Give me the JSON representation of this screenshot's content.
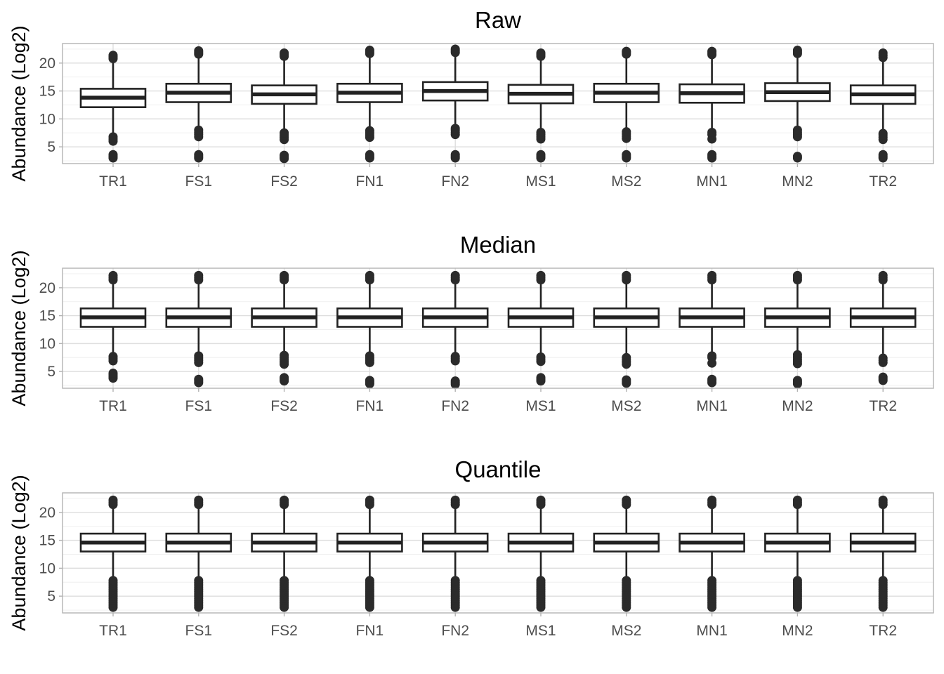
{
  "chart_data": [
    {
      "type": "boxplot",
      "title": "Raw",
      "ylabel": "Abundance (Log2)",
      "ylim": [
        2,
        23.5
      ],
      "yticks": [
        5,
        10,
        15,
        20
      ],
      "categories": [
        "TR1",
        "FS1",
        "FS2",
        "FN1",
        "FN2",
        "MS1",
        "MS2",
        "MN1",
        "MN2",
        "TR2"
      ],
      "boxes": [
        {
          "q1": 12.1,
          "median": 13.8,
          "q3": 15.4,
          "whisker_low": 7.2,
          "whisker_high": 20.4,
          "outliers": [
            6.0,
            6.4,
            6.8,
            3.0,
            3.3,
            3.6,
            20.8,
            21.1,
            21.4
          ]
        },
        {
          "q1": 13.0,
          "median": 14.7,
          "q3": 16.3,
          "whisker_low": 8.4,
          "whisker_high": 21.2,
          "outliers": [
            6.8,
            7.2,
            7.6,
            8.0,
            3.0,
            3.3,
            3.6,
            21.6,
            21.9,
            22.2
          ]
        },
        {
          "q1": 12.7,
          "median": 14.4,
          "q3": 16.0,
          "whisker_low": 7.8,
          "whisker_high": 20.8,
          "outliers": [
            6.3,
            6.7,
            7.1,
            7.5,
            2.9,
            3.2,
            3.5,
            21.2,
            21.5,
            21.8
          ]
        },
        {
          "q1": 13.0,
          "median": 14.7,
          "q3": 16.3,
          "whisker_low": 8.3,
          "whisker_high": 21.3,
          "outliers": [
            6.7,
            7.1,
            7.5,
            7.9,
            3.0,
            3.3,
            3.6,
            21.7,
            22.0,
            22.3
          ]
        },
        {
          "q1": 13.3,
          "median": 15.0,
          "q3": 16.6,
          "whisker_low": 8.6,
          "whisker_high": 21.5,
          "outliers": [
            7.2,
            7.6,
            8.0,
            8.3,
            3.0,
            3.3,
            3.6,
            21.9,
            22.2,
            22.5
          ]
        },
        {
          "q1": 12.8,
          "median": 14.5,
          "q3": 16.1,
          "whisker_low": 7.9,
          "whisker_high": 20.8,
          "outliers": [
            6.4,
            6.8,
            7.2,
            7.6,
            3.0,
            3.3,
            3.6,
            21.2,
            21.5,
            21.8
          ]
        },
        {
          "q1": 13.0,
          "median": 14.7,
          "q3": 16.3,
          "whisker_low": 8.2,
          "whisker_high": 21.2,
          "outliers": [
            6.5,
            6.9,
            7.3,
            7.7,
            3.0,
            3.3,
            3.6,
            21.6,
            21.9,
            22.1
          ]
        },
        {
          "q1": 12.9,
          "median": 14.6,
          "q3": 16.2,
          "whisker_low": 8.0,
          "whisker_high": 21.1,
          "outliers": [
            6.4,
            7.2,
            7.6,
            3.0,
            3.3,
            3.6,
            21.5,
            21.8,
            22.1
          ]
        },
        {
          "q1": 13.2,
          "median": 14.8,
          "q3": 16.4,
          "whisker_low": 8.5,
          "whisker_high": 21.3,
          "outliers": [
            6.8,
            7.2,
            7.6,
            8.0,
            3.0,
            3.3,
            21.7,
            22.0,
            22.3
          ]
        },
        {
          "q1": 12.7,
          "median": 14.4,
          "q3": 16.0,
          "whisker_low": 7.8,
          "whisker_high": 20.6,
          "outliers": [
            6.3,
            6.7,
            7.1,
            7.4,
            3.0,
            3.3,
            3.6,
            21.0,
            21.4,
            21.8
          ]
        }
      ]
    },
    {
      "type": "boxplot",
      "title": "Median",
      "ylabel": "Abundance (Log2)",
      "ylim": [
        2,
        23.5
      ],
      "yticks": [
        5,
        10,
        15,
        20
      ],
      "categories": [
        "TR1",
        "FS1",
        "FS2",
        "FN1",
        "FN2",
        "MS1",
        "MS2",
        "MN1",
        "MN2",
        "TR2"
      ],
      "boxes": [
        {
          "q1": 13.0,
          "median": 14.7,
          "q3": 16.3,
          "whisker_low": 8.2,
          "whisker_high": 21.0,
          "outliers": [
            6.9,
            7.3,
            7.7,
            3.8,
            4.1,
            4.4,
            4.7,
            21.4,
            21.8,
            22.2
          ]
        },
        {
          "q1": 13.0,
          "median": 14.7,
          "q3": 16.3,
          "whisker_low": 8.2,
          "whisker_high": 21.0,
          "outliers": [
            6.6,
            7.0,
            7.4,
            7.8,
            3.0,
            3.3,
            3.6,
            21.4,
            21.8,
            22.2
          ]
        },
        {
          "q1": 13.0,
          "median": 14.7,
          "q3": 16.3,
          "whisker_low": 8.2,
          "whisker_high": 21.0,
          "outliers": [
            6.3,
            6.7,
            7.1,
            7.5,
            7.9,
            3.3,
            3.6,
            3.9,
            21.4,
            21.8,
            22.2
          ]
        },
        {
          "q1": 13.0,
          "median": 14.7,
          "q3": 16.3,
          "whisker_low": 8.2,
          "whisker_high": 21.0,
          "outliers": [
            6.6,
            7.0,
            7.4,
            7.8,
            2.8,
            3.1,
            3.4,
            21.4,
            21.8,
            22.2
          ]
        },
        {
          "q1": 13.0,
          "median": 14.7,
          "q3": 16.3,
          "whisker_low": 8.2,
          "whisker_high": 21.0,
          "outliers": [
            6.9,
            7.3,
            7.7,
            2.7,
            3.0,
            3.3,
            21.4,
            21.8,
            22.2
          ]
        },
        {
          "q1": 13.0,
          "median": 14.7,
          "q3": 16.3,
          "whisker_low": 8.2,
          "whisker_high": 21.0,
          "outliers": [
            6.8,
            7.2,
            7.6,
            3.3,
            3.6,
            3.9,
            21.4,
            21.8,
            22.2
          ]
        },
        {
          "q1": 13.0,
          "median": 14.7,
          "q3": 16.3,
          "whisker_low": 8.2,
          "whisker_high": 21.0,
          "outliers": [
            6.3,
            6.7,
            7.1,
            7.5,
            2.9,
            3.2,
            3.5,
            21.4,
            21.8,
            22.2
          ]
        },
        {
          "q1": 13.0,
          "median": 14.7,
          "q3": 16.3,
          "whisker_low": 8.2,
          "whisker_high": 21.0,
          "outliers": [
            6.5,
            7.5,
            7.8,
            3.0,
            3.3,
            3.6,
            21.4,
            21.8,
            22.2
          ]
        },
        {
          "q1": 13.0,
          "median": 14.7,
          "q3": 16.3,
          "whisker_low": 8.2,
          "whisker_high": 21.0,
          "outliers": [
            6.4,
            6.8,
            7.2,
            7.6,
            8.0,
            2.8,
            3.1,
            3.4,
            21.4,
            21.8,
            22.2
          ]
        },
        {
          "q1": 13.0,
          "median": 14.7,
          "q3": 16.3,
          "whisker_low": 8.2,
          "whisker_high": 21.0,
          "outliers": [
            6.6,
            7.0,
            7.4,
            3.4,
            3.7,
            4.0,
            21.4,
            21.8,
            22.2
          ]
        }
      ]
    },
    {
      "type": "boxplot",
      "title": "Quantile",
      "ylabel": "Abundance (Log2)",
      "ylim": [
        2,
        23.5
      ],
      "yticks": [
        5,
        10,
        15,
        20
      ],
      "categories": [
        "TR1",
        "FS1",
        "FS2",
        "FN1",
        "FN2",
        "MS1",
        "MS2",
        "MN1",
        "MN2",
        "TR2"
      ],
      "boxes": [
        {
          "q1": 13.0,
          "median": 14.6,
          "q3": 16.2,
          "whisker_low": 8.2,
          "whisker_high": 21.0,
          "outliers": [
            3.0,
            3.4,
            3.8,
            4.2,
            4.6,
            5.0,
            5.4,
            5.8,
            6.2,
            6.6,
            7.0,
            7.4,
            7.8,
            21.4,
            21.8,
            22.2
          ]
        },
        {
          "q1": 13.0,
          "median": 14.6,
          "q3": 16.2,
          "whisker_low": 8.2,
          "whisker_high": 21.0,
          "outliers": [
            3.0,
            3.4,
            3.8,
            4.2,
            4.6,
            5.0,
            5.4,
            5.8,
            6.2,
            6.6,
            7.0,
            7.4,
            7.8,
            21.4,
            21.8,
            22.2
          ]
        },
        {
          "q1": 13.0,
          "median": 14.6,
          "q3": 16.2,
          "whisker_low": 8.2,
          "whisker_high": 21.0,
          "outliers": [
            3.0,
            3.4,
            3.8,
            4.2,
            4.6,
            5.0,
            5.4,
            5.8,
            6.2,
            6.6,
            7.0,
            7.4,
            7.8,
            21.4,
            21.8,
            22.2
          ]
        },
        {
          "q1": 13.0,
          "median": 14.6,
          "q3": 16.2,
          "whisker_low": 8.2,
          "whisker_high": 21.0,
          "outliers": [
            3.0,
            3.4,
            3.8,
            4.2,
            4.6,
            5.0,
            5.4,
            5.8,
            6.2,
            6.6,
            7.0,
            7.4,
            7.8,
            21.4,
            21.8,
            22.2
          ]
        },
        {
          "q1": 13.0,
          "median": 14.6,
          "q3": 16.2,
          "whisker_low": 8.2,
          "whisker_high": 21.0,
          "outliers": [
            3.0,
            3.4,
            3.8,
            4.2,
            4.6,
            5.0,
            5.4,
            5.8,
            6.2,
            6.6,
            7.0,
            7.4,
            7.8,
            21.4,
            21.8,
            22.2
          ]
        },
        {
          "q1": 13.0,
          "median": 14.6,
          "q3": 16.2,
          "whisker_low": 8.2,
          "whisker_high": 21.0,
          "outliers": [
            3.0,
            3.4,
            3.8,
            4.2,
            4.6,
            5.0,
            5.4,
            5.8,
            6.2,
            6.6,
            7.0,
            7.4,
            7.8,
            21.4,
            21.8,
            22.2
          ]
        },
        {
          "q1": 13.0,
          "median": 14.6,
          "q3": 16.2,
          "whisker_low": 8.2,
          "whisker_high": 21.0,
          "outliers": [
            3.0,
            3.4,
            3.8,
            4.2,
            4.6,
            5.0,
            5.4,
            5.8,
            6.2,
            6.6,
            7.0,
            7.4,
            7.8,
            21.4,
            21.8,
            22.2
          ]
        },
        {
          "q1": 13.0,
          "median": 14.6,
          "q3": 16.2,
          "whisker_low": 8.2,
          "whisker_high": 21.0,
          "outliers": [
            3.0,
            3.4,
            3.8,
            4.2,
            4.6,
            5.0,
            5.4,
            5.8,
            6.2,
            6.6,
            7.0,
            7.4,
            7.8,
            21.4,
            21.8,
            22.2
          ]
        },
        {
          "q1": 13.0,
          "median": 14.6,
          "q3": 16.2,
          "whisker_low": 8.2,
          "whisker_high": 21.0,
          "outliers": [
            3.0,
            3.4,
            3.8,
            4.2,
            4.6,
            5.0,
            5.4,
            5.8,
            6.2,
            6.6,
            7.0,
            7.4,
            7.8,
            21.4,
            21.8,
            22.2
          ]
        },
        {
          "q1": 13.0,
          "median": 14.6,
          "q3": 16.2,
          "whisker_low": 8.2,
          "whisker_high": 21.0,
          "outliers": [
            3.0,
            3.4,
            3.8,
            4.2,
            4.6,
            5.0,
            5.4,
            5.8,
            6.2,
            6.6,
            7.0,
            7.4,
            7.8,
            21.4,
            21.8,
            22.2
          ]
        }
      ]
    }
  ]
}
